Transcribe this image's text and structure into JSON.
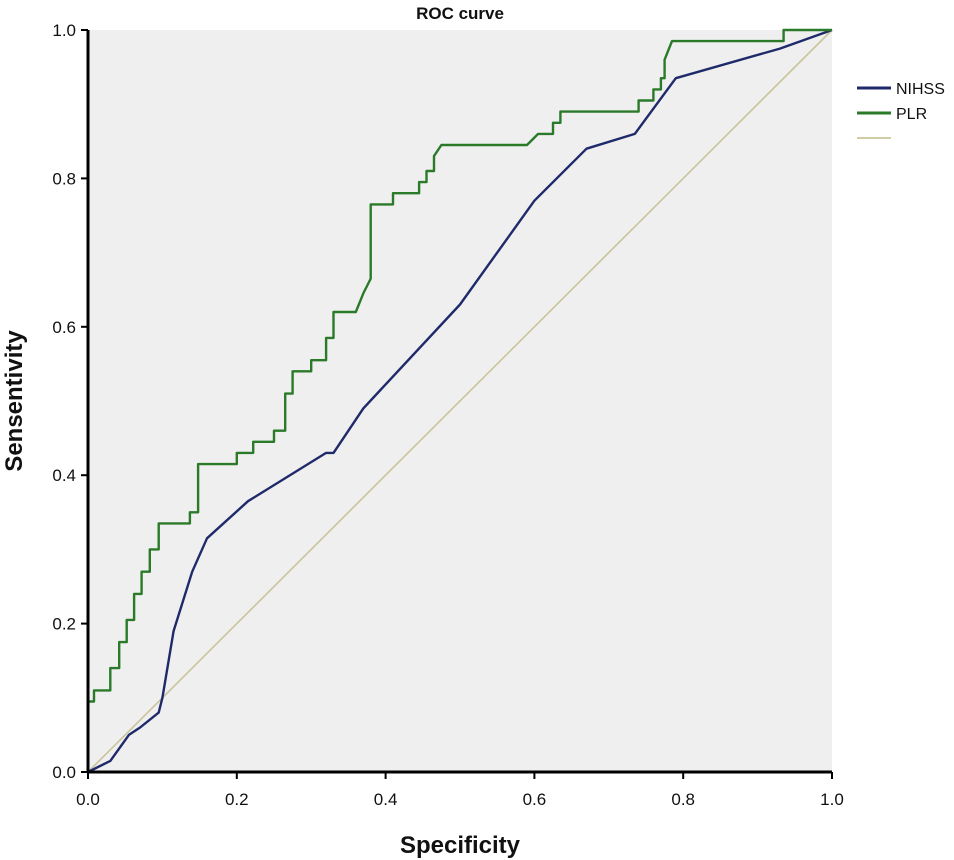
{
  "chart_data": {
    "type": "line",
    "title": "ROC curve",
    "xlabel": "Specificity",
    "ylabel": "Sensentivity",
    "xlim": [
      0,
      1
    ],
    "ylim": [
      0,
      1
    ],
    "xticks": [
      "0.0",
      "0.2",
      "0.4",
      "0.6",
      "0.8",
      "1.0"
    ],
    "yticks": [
      "0.0",
      "0.2",
      "0.4",
      "0.6",
      "0.8",
      "1.0"
    ],
    "grid": false,
    "legend_position": "right",
    "colors": {
      "plot_bg": "#efefef",
      "axis": "#000000"
    },
    "series": [
      {
        "name": "NIHSS",
        "color": "#1f2a6b",
        "step": false,
        "points": [
          [
            0,
            0
          ],
          [
            0.03,
            0.015
          ],
          [
            0.055,
            0.05
          ],
          [
            0.07,
            0.06
          ],
          [
            0.095,
            0.08
          ],
          [
            0.1,
            0.1
          ],
          [
            0.115,
            0.19
          ],
          [
            0.14,
            0.27
          ],
          [
            0.16,
            0.315
          ],
          [
            0.215,
            0.365
          ],
          [
            0.32,
            0.43
          ],
          [
            0.33,
            0.43
          ],
          [
            0.37,
            0.49
          ],
          [
            0.5,
            0.63
          ],
          [
            0.6,
            0.77
          ],
          [
            0.67,
            0.84
          ],
          [
            0.735,
            0.86
          ],
          [
            0.79,
            0.935
          ],
          [
            0.93,
            0.975
          ],
          [
            1.0,
            1.0
          ]
        ]
      },
      {
        "name": "PLR",
        "color": "#2a7a2a",
        "step": true,
        "points": [
          [
            0,
            0
          ],
          [
            0,
            0.095
          ],
          [
            0.008,
            0.095
          ],
          [
            0.008,
            0.11
          ],
          [
            0.03,
            0.11
          ],
          [
            0.03,
            0.14
          ],
          [
            0.042,
            0.14
          ],
          [
            0.042,
            0.175
          ],
          [
            0.052,
            0.175
          ],
          [
            0.052,
            0.205
          ],
          [
            0.062,
            0.205
          ],
          [
            0.062,
            0.24
          ],
          [
            0.072,
            0.24
          ],
          [
            0.072,
            0.27
          ],
          [
            0.083,
            0.27
          ],
          [
            0.083,
            0.3
          ],
          [
            0.095,
            0.3
          ],
          [
            0.095,
            0.335
          ],
          [
            0.137,
            0.335
          ],
          [
            0.137,
            0.35
          ],
          [
            0.148,
            0.35
          ],
          [
            0.148,
            0.415
          ],
          [
            0.2,
            0.415
          ],
          [
            0.2,
            0.43
          ],
          [
            0.222,
            0.43
          ],
          [
            0.222,
            0.445
          ],
          [
            0.25,
            0.445
          ],
          [
            0.25,
            0.46
          ],
          [
            0.265,
            0.46
          ],
          [
            0.265,
            0.51
          ],
          [
            0.275,
            0.51
          ],
          [
            0.275,
            0.54
          ],
          [
            0.3,
            0.54
          ],
          [
            0.3,
            0.555
          ],
          [
            0.32,
            0.555
          ],
          [
            0.32,
            0.585
          ],
          [
            0.33,
            0.585
          ],
          [
            0.33,
            0.62
          ],
          [
            0.36,
            0.62
          ],
          [
            0.37,
            0.645
          ],
          [
            0.38,
            0.665
          ],
          [
            0.38,
            0.765
          ],
          [
            0.41,
            0.765
          ],
          [
            0.41,
            0.78
          ],
          [
            0.445,
            0.78
          ],
          [
            0.445,
            0.795
          ],
          [
            0.455,
            0.795
          ],
          [
            0.455,
            0.81
          ],
          [
            0.465,
            0.81
          ],
          [
            0.465,
            0.83
          ],
          [
            0.475,
            0.845
          ],
          [
            0.59,
            0.845
          ],
          [
            0.605,
            0.86
          ],
          [
            0.625,
            0.86
          ],
          [
            0.625,
            0.875
          ],
          [
            0.635,
            0.875
          ],
          [
            0.635,
            0.89
          ],
          [
            0.74,
            0.89
          ],
          [
            0.74,
            0.905
          ],
          [
            0.76,
            0.905
          ],
          [
            0.76,
            0.92
          ],
          [
            0.77,
            0.92
          ],
          [
            0.77,
            0.935
          ],
          [
            0.775,
            0.935
          ],
          [
            0.775,
            0.96
          ],
          [
            0.785,
            0.985
          ],
          [
            0.935,
            0.985
          ],
          [
            0.935,
            1.0
          ],
          [
            1.0,
            1.0
          ]
        ]
      },
      {
        "name": "",
        "color": "#c9c49a",
        "step": false,
        "points": [
          [
            0,
            0
          ],
          [
            1,
            1
          ]
        ]
      }
    ]
  }
}
